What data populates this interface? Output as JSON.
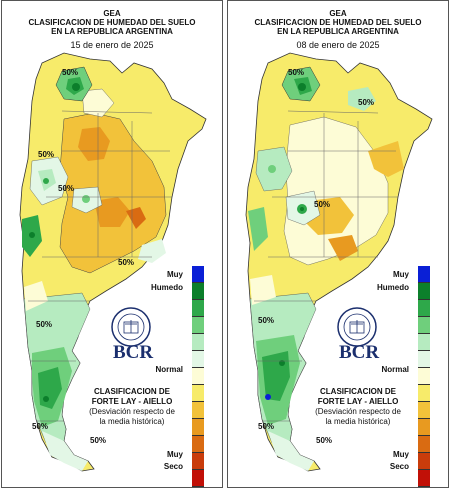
{
  "colors": {
    "scale": [
      "#0a1fd6",
      "#0c7f2b",
      "#2ea84a",
      "#6fcf7c",
      "#b6ebc0",
      "#e3f7e6",
      "#fdfcd6",
      "#f7eb6a",
      "#f2c23a",
      "#e89a20",
      "#d96b12",
      "#c93c0b",
      "#c11007"
    ],
    "border": "#555555",
    "bcr": "#1b2f6e"
  },
  "panels": [
    {
      "title_line1": "GEA",
      "title_line2": "CLASIFICACION DE HUMEDAD DEL SUELO",
      "title_line3": "EN LA REPUBLICA ARGENTINA",
      "date": "15 de enero de 2025",
      "legend": {
        "muy_humedo_1": "Muy",
        "muy_humedo_2": "Humedo",
        "normal": "Normal",
        "muy_seco_1": "Muy",
        "muy_seco_2": "Seco"
      },
      "logo_text": "BCR",
      "seal_text": "BOLSA DE COMERCIO DE ROSARIO",
      "clasif_line1": "CLASIFICACION DE",
      "clasif_line2": "FORTE LAY - AIELLO",
      "desv_line1": "(Desviación respecto de",
      "desv_line2": "la media histórica)",
      "contour_labels": [
        "50%",
        "50%",
        "50%",
        "50%",
        "50%",
        "50%",
        "50%"
      ]
    },
    {
      "title_line1": "GEA",
      "title_line2": "CLASIFICACION DE HUMEDAD DEL SUELO",
      "title_line3": "EN LA REPUBLICA ARGENTINA",
      "date": "08 de enero de 2025",
      "legend": {
        "muy_humedo_1": "Muy",
        "muy_humedo_2": "Humedo",
        "normal": "Normal",
        "muy_seco_1": "Muy",
        "muy_seco_2": "Seco"
      },
      "logo_text": "BCR",
      "seal_text": "BOLSA DE COMERCIO DE ROSARIO",
      "clasif_line1": "CLASIFICACION DE",
      "clasif_line2": "FORTE LAY - AIELLO",
      "desv_line1": "(Desviación respecto de",
      "desv_line2": "la media histórica)",
      "contour_labels": [
        "50%",
        "50%",
        "50%",
        "50%",
        "50%",
        "50%"
      ]
    }
  ]
}
